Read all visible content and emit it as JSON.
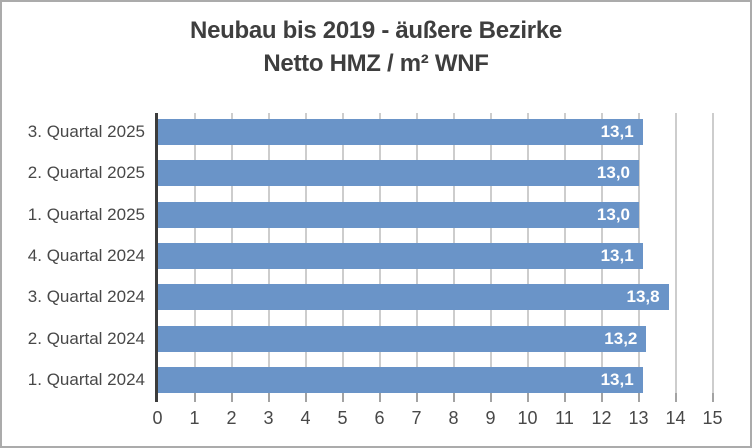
{
  "title": {
    "line1": "Neubau bis 2019 - äußere Bezirke",
    "line2": "Netto HMZ / m² WNF"
  },
  "chart_data": {
    "type": "bar",
    "orientation": "horizontal",
    "title": "Neubau bis 2019 - äußere Bezirke — Netto HMZ / m² WNF",
    "categories": [
      "3. Quartal 2025",
      "2. Quartal 2025",
      "1. Quartal 2025",
      "4. Quartal 2024",
      "3. Quartal 2024",
      "2. Quartal 2024",
      "1. Quartal 2024"
    ],
    "values": [
      13.1,
      13.0,
      13.0,
      13.1,
      13.8,
      13.2,
      13.1
    ],
    "value_labels": [
      "13,1",
      "13,0",
      "13,0",
      "13,1",
      "13,8",
      "13,2",
      "13,1"
    ],
    "xlabel": "",
    "ylabel": "",
    "xlim": [
      0,
      15
    ],
    "x_ticks": [
      0,
      1,
      2,
      3,
      4,
      5,
      6,
      7,
      8,
      9,
      10,
      11,
      12,
      13,
      14,
      15
    ],
    "grid": true,
    "legend": false,
    "bar_color": "#6a94c8",
    "value_label_color": "#ffffff",
    "gridline_color": "#cdcdcd",
    "axis_line_color": "#3c3c3c",
    "tick_color": "#a3a3a3",
    "text_color": "#484848",
    "title_color": "#3e3e3e"
  }
}
